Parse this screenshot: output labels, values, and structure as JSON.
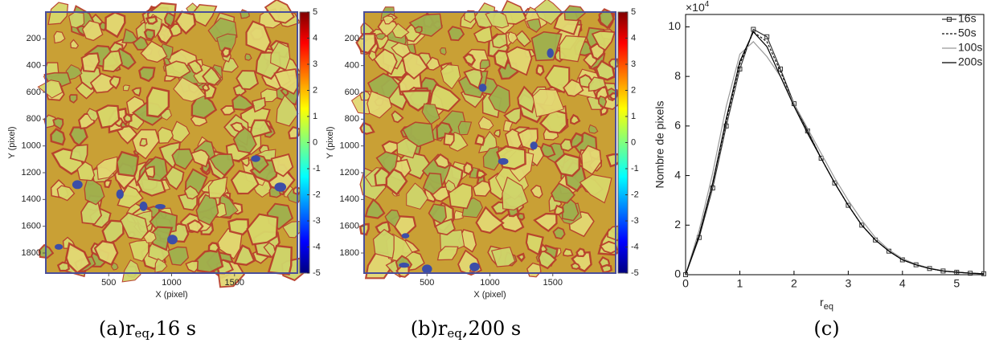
{
  "chart_data": [
    {
      "type": "image",
      "xlabel": "X (pixel)",
      "ylabel": "Y (pixel)",
      "xlim": [
        0,
        2000
      ],
      "xticks": [
        500,
        1000,
        1500
      ],
      "ylim": [
        0,
        1950
      ],
      "yticks": [
        200,
        400,
        600,
        800,
        1000,
        1200,
        1400,
        1600,
        1800
      ],
      "clim": [
        -5,
        5
      ],
      "cticks": [
        -5,
        -4,
        -3,
        -2,
        -1,
        0,
        1,
        2,
        3,
        4,
        5
      ],
      "caption": {
        "label": "(a)",
        "symbol": "r",
        "subscript": "eq",
        "suffix": ",16 s"
      }
    },
    {
      "type": "image",
      "xlabel": "X (pixel)",
      "ylabel": "Y (pixel)",
      "xlim": [
        0,
        2000
      ],
      "xticks": [
        500,
        1000,
        1500
      ],
      "ylim": [
        0,
        1950
      ],
      "yticks": [
        200,
        400,
        600,
        800,
        1000,
        1200,
        1400,
        1600,
        1800
      ],
      "clim": [
        -5,
        5
      ],
      "cticks": [
        -5,
        -4,
        -3,
        -2,
        -1,
        0,
        1,
        2,
        3,
        4,
        5
      ],
      "caption": {
        "label": "(b)",
        "symbol": "r",
        "subscript": "eq",
        "suffix": ",200 s"
      }
    },
    {
      "type": "line",
      "xlabel": "r",
      "xlabel_sub": "eq",
      "ylabel": "Nombre de pixels",
      "scale_label": "×10",
      "scale_exp": "4",
      "xlim": [
        0,
        5.5
      ],
      "xticks": [
        0,
        1,
        2,
        3,
        4,
        5
      ],
      "ylim": [
        0,
        10.5
      ],
      "yticks": [
        0,
        2,
        4,
        6,
        8,
        10
      ],
      "x": [
        0,
        0.25,
        0.5,
        0.75,
        1,
        1.25,
        1.5,
        1.75,
        2,
        2.25,
        2.5,
        2.75,
        3,
        3.25,
        3.5,
        3.75,
        4,
        4.25,
        4.5,
        4.75,
        5,
        5.25,
        5.5
      ],
      "series": [
        {
          "name": "16s",
          "color": "#333333",
          "dash": "none",
          "marker": true,
          "values": [
            0,
            1.5,
            3.5,
            6.0,
            8.3,
            9.9,
            9.6,
            8.3,
            6.9,
            5.8,
            4.7,
            3.7,
            2.8,
            2.0,
            1.4,
            0.95,
            0.6,
            0.4,
            0.25,
            0.15,
            0.1,
            0.06,
            0.04
          ]
        },
        {
          "name": "50s",
          "color": "#111111",
          "dash": "3,2",
          "marker": false,
          "values": [
            0,
            1.6,
            3.7,
            6.2,
            8.5,
            9.8,
            9.4,
            8.2,
            6.9,
            5.8,
            4.7,
            3.7,
            2.8,
            2.0,
            1.4,
            0.95,
            0.6,
            0.4,
            0.25,
            0.15,
            0.1,
            0.06,
            0.04
          ]
        },
        {
          "name": "100s",
          "color": "#999999",
          "dash": "none",
          "marker": false,
          "values": [
            0,
            1.8,
            4.1,
            6.8,
            8.9,
            9.4,
            8.8,
            8.0,
            6.9,
            5.9,
            4.9,
            3.9,
            3.0,
            2.2,
            1.5,
            1.0,
            0.65,
            0.42,
            0.27,
            0.16,
            0.1,
            0.06,
            0.04
          ]
        },
        {
          "name": "200s",
          "color": "#000000",
          "dash": "none",
          "marker": false,
          "values": [
            0,
            1.6,
            3.7,
            6.3,
            8.6,
            9.8,
            9.2,
            8.0,
            6.8,
            5.7,
            4.7,
            3.7,
            2.8,
            2.0,
            1.4,
            0.95,
            0.6,
            0.4,
            0.25,
            0.15,
            0.1,
            0.06,
            0.04
          ]
        }
      ],
      "caption": {
        "label": "(c)"
      }
    }
  ]
}
